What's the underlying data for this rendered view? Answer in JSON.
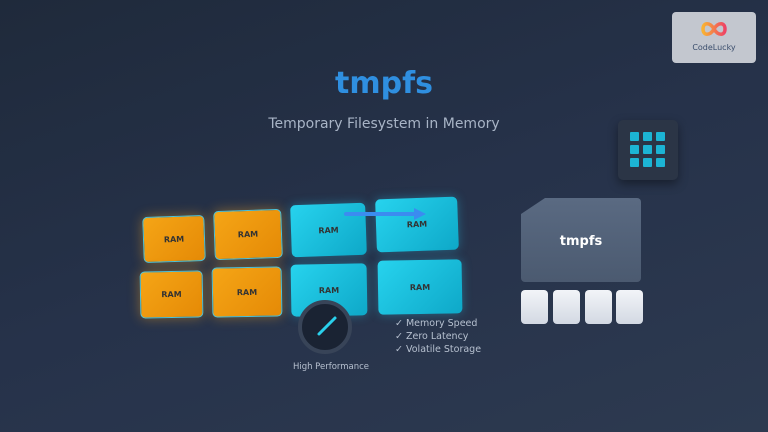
{
  "header": {
    "title": "tmpfs",
    "subtitle": "Temporary Filesystem in Memory"
  },
  "logo": {
    "text": "CodeLucky"
  },
  "ram_tiles": [
    {
      "label": "RAM",
      "color": "orange"
    },
    {
      "label": "RAM",
      "color": "orange"
    },
    {
      "label": "RAM",
      "color": "cyan"
    },
    {
      "label": "RAM",
      "color": "cyan"
    },
    {
      "label": "RAM",
      "color": "orange"
    },
    {
      "label": "RAM",
      "color": "orange"
    },
    {
      "label": "RAM",
      "color": "cyan"
    },
    {
      "label": "RAM",
      "color": "cyan"
    }
  ],
  "gauge": {
    "label": "High Performance",
    "icon": "speedometer-icon"
  },
  "features": [
    "✓ Memory Speed",
    "✓ Zero Latency",
    "✓ Volatile Storage"
  ],
  "storage_card": {
    "label": "tmpfs"
  },
  "colors": {
    "title": "#2f8fe0",
    "orange": "#f5a516",
    "cyan": "#27d3ee",
    "background": "#26324a"
  }
}
